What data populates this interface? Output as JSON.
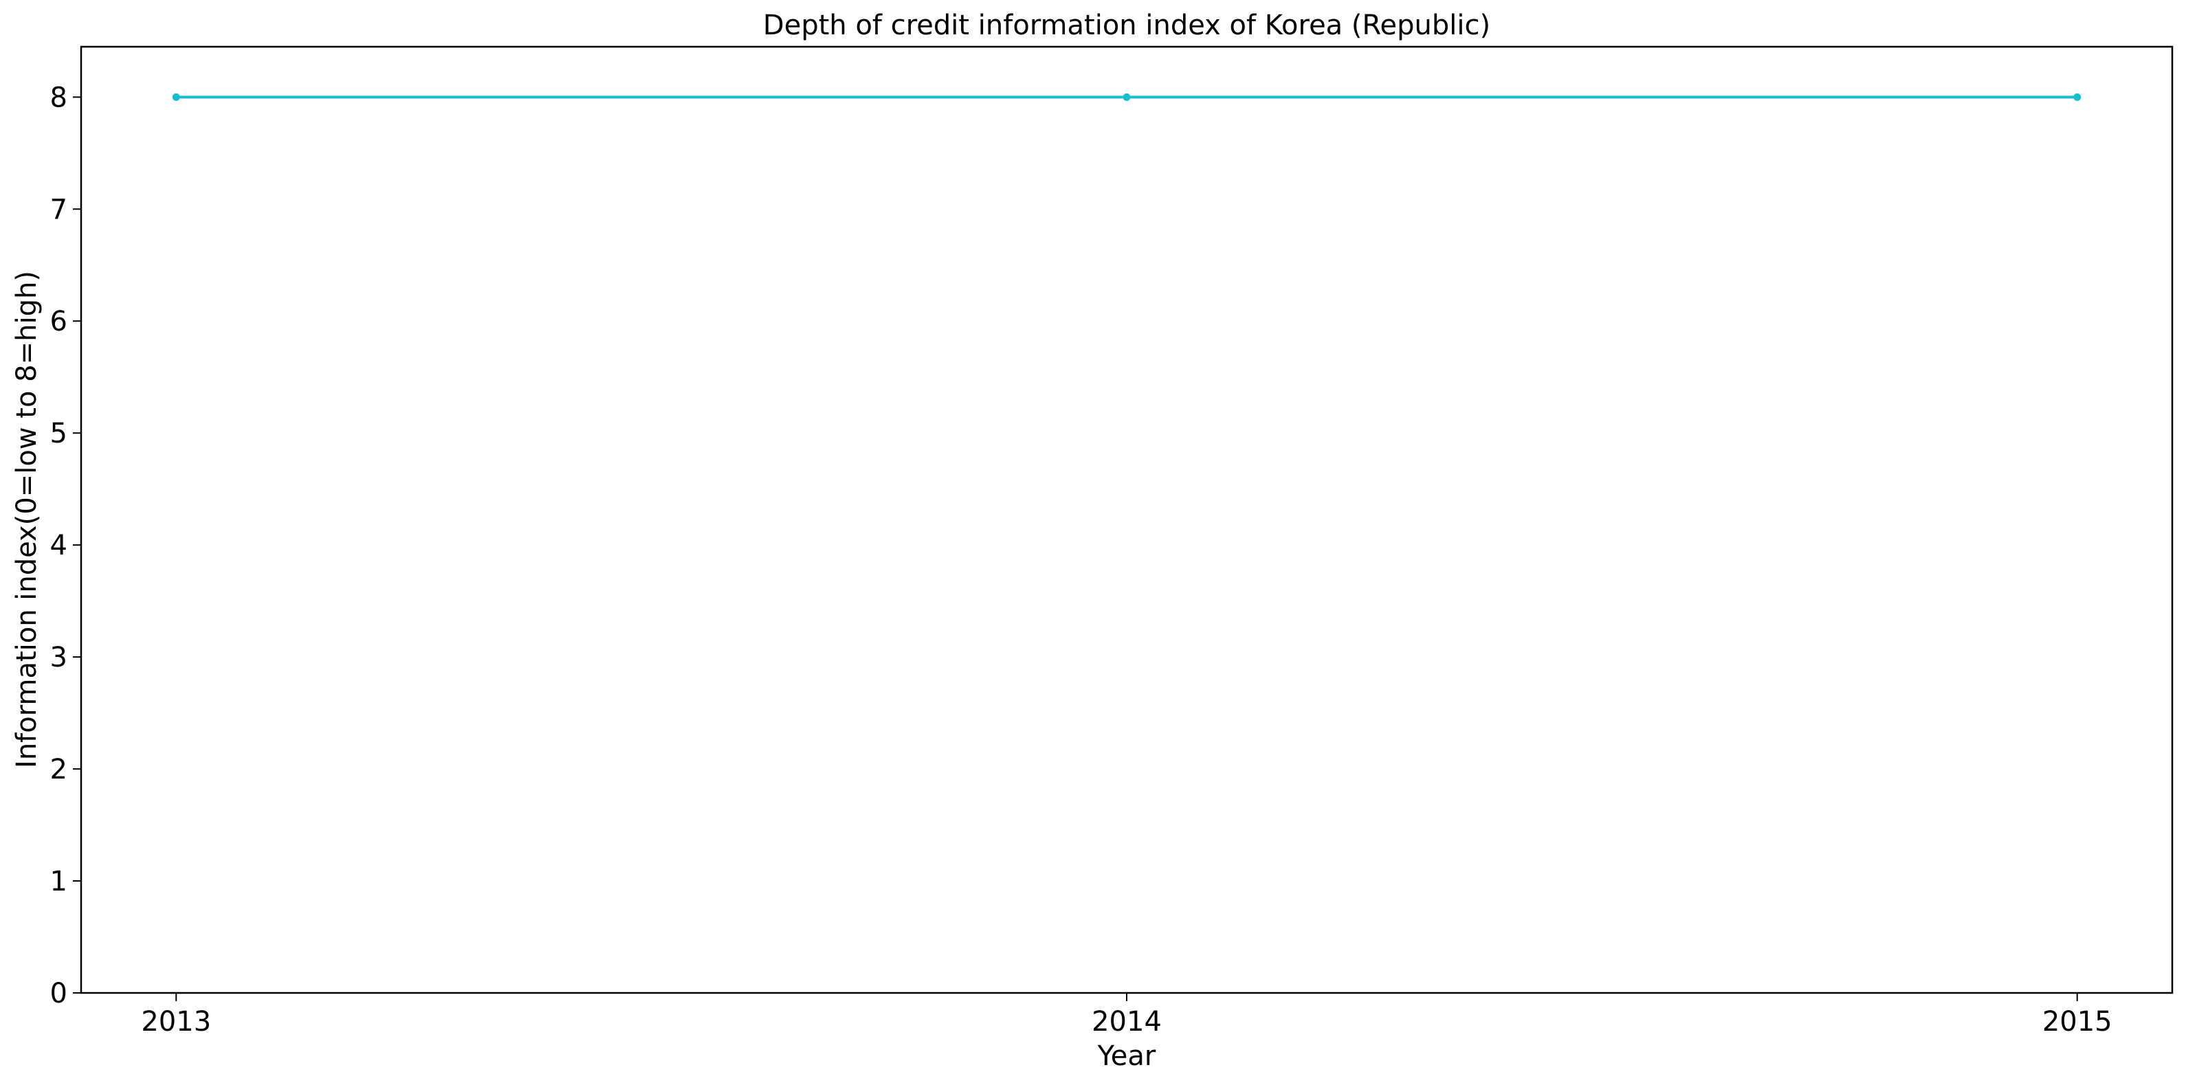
{
  "chart_data": {
    "type": "line",
    "title": "Depth of credit information index of Korea (Republic)",
    "xlabel": "Year",
    "ylabel": "Information index(0=low to 8=high)",
    "x": [
      2013,
      2014,
      2015
    ],
    "series": [
      {
        "values": [
          8,
          8,
          8
        ],
        "color": "#17becf",
        "marker": "circle"
      }
    ],
    "x_ticks": [
      "2013",
      "2014",
      "2015"
    ],
    "y_ticks": [
      "0",
      "1",
      "2",
      "3",
      "4",
      "5",
      "6",
      "7",
      "8"
    ],
    "xlim": [
      2012.9,
      2015.1
    ],
    "ylim": [
      0,
      8.45
    ],
    "grid": false,
    "legend": "none"
  }
}
